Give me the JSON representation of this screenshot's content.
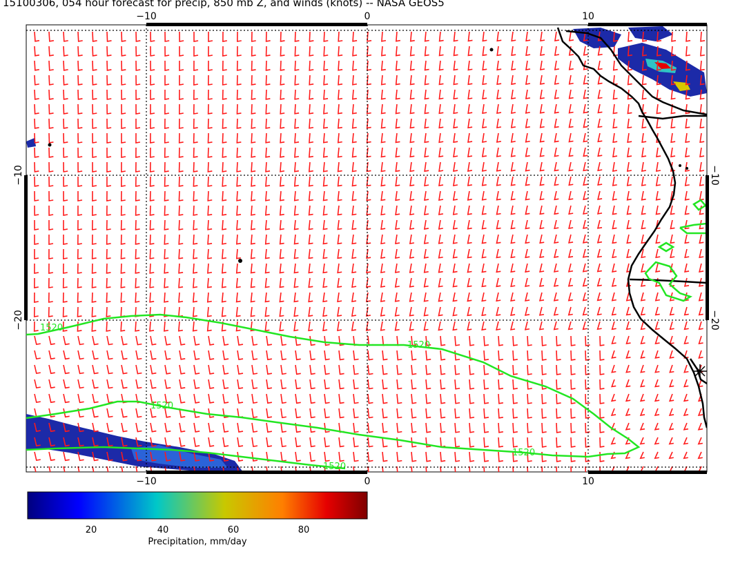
{
  "title": "15100306, 054 hour forecast for precip, 850 mb Z, and winds (knots) -- NASA GEOS5",
  "map": {
    "x_ticks": [
      {
        "value": -10,
        "label": "−10"
      },
      {
        "value": 0,
        "label": "0"
      },
      {
        "value": 10,
        "label": "10"
      }
    ],
    "y_ticks": [
      {
        "value": -10,
        "label": "−10"
      },
      {
        "value": -20,
        "label": "−20"
      }
    ],
    "contour_labels": [
      "1520",
      "1520",
      "1520",
      "1520",
      "1520"
    ],
    "colors": {
      "contour": "#22e622",
      "barb": "#ff1a1a",
      "coast": "#000000",
      "grid": "#000000"
    }
  },
  "colorbar": {
    "ticks": [
      "20",
      "40",
      "60",
      "80"
    ],
    "label": "Precipitation, mm/day",
    "colors": [
      "#00007f",
      "#0000ff",
      "#00c8c8",
      "#c8c800",
      "#ff7f00",
      "#e60000",
      "#7f0000"
    ]
  }
}
